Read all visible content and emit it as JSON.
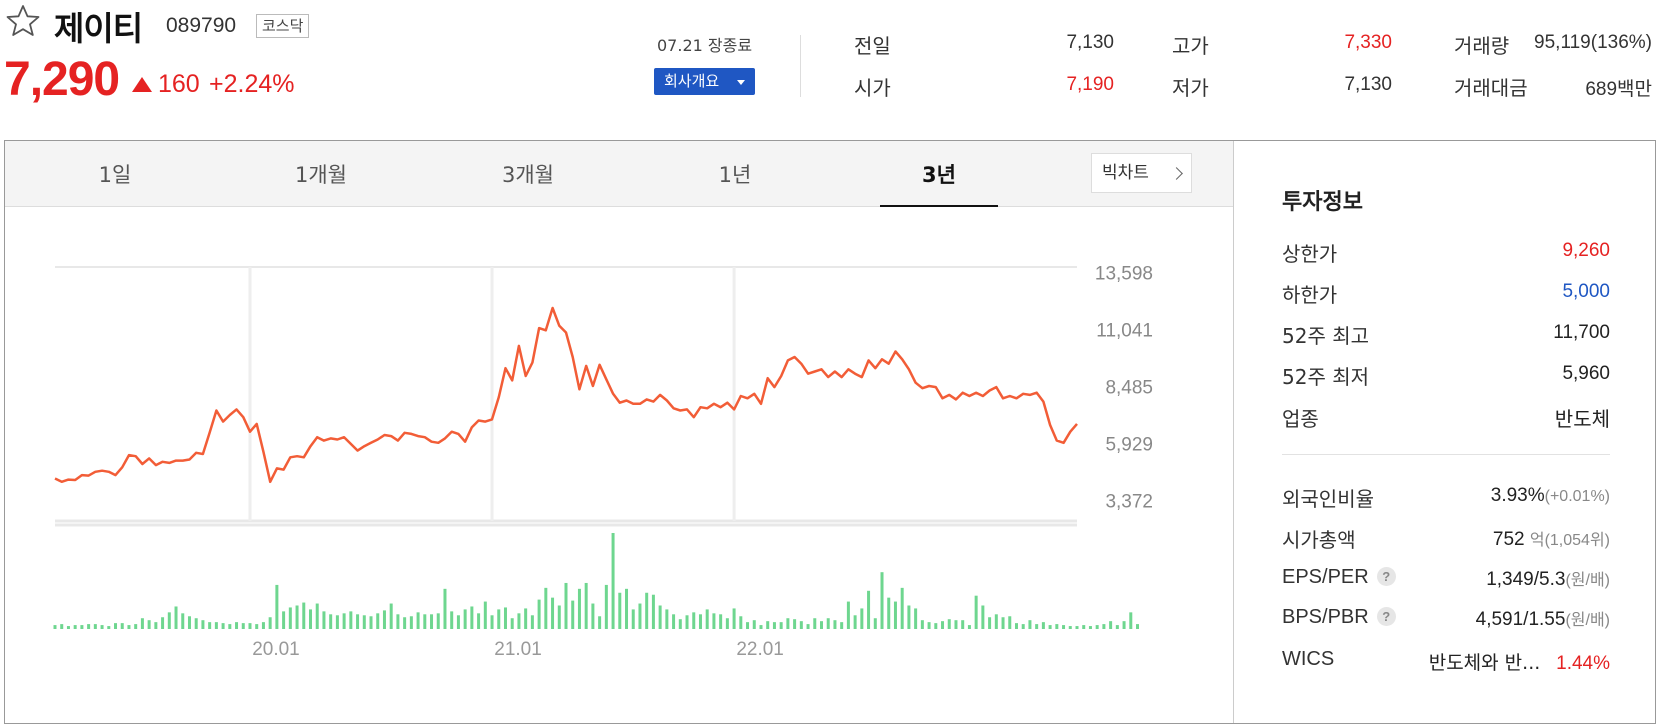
{
  "stock": {
    "name": "제이티",
    "code": "089790",
    "market": "코스닥",
    "price": "7,290",
    "change": "160",
    "change_pct": "+2.24%",
    "direction": "up"
  },
  "session": {
    "date_status": "07.21 장종료",
    "overview_button": "회사개요"
  },
  "stats": [
    {
      "label": "전일",
      "value": "7,130",
      "color": "#333333"
    },
    {
      "label": "고가",
      "value": "7,330",
      "color": "#e52222"
    },
    {
      "label": "거래량",
      "value": "95,119(136%)",
      "color": "#333333"
    },
    {
      "label": "시가",
      "value": "7,190",
      "color": "#e52222"
    },
    {
      "label": "저가",
      "value": "7,130",
      "color": "#333333"
    },
    {
      "label": "거래대금",
      "value": "689백만",
      "color": "#333333"
    }
  ],
  "tabs": [
    "1일",
    "1개월",
    "3개월",
    "1년",
    "3년"
  ],
  "active_tab": "3년",
  "big_chart_button": "빅차트",
  "chart_data": {
    "type": "line",
    "price_series_color": "#f25d37",
    "volume_series_color": "#6ed68f",
    "y_ticks": [
      "13,598",
      "11,041",
      "8,485",
      "5,929",
      "3,372"
    ],
    "y_tick_values": [
      13598,
      11041,
      8485,
      5929,
      3372
    ],
    "ylim": [
      2800,
      14200
    ],
    "x_ticks": [
      "20.01",
      "21.01",
      "22.01"
    ],
    "x_tick_positions": [
      29,
      65,
      101
    ],
    "grid": true,
    "price": [
      4350,
      4200,
      4300,
      4280,
      4500,
      4480,
      4650,
      4700,
      4650,
      4500,
      4850,
      5400,
      5350,
      5000,
      5250,
      4950,
      5100,
      5050,
      5150,
      5150,
      5200,
      5500,
      5450,
      6400,
      7400,
      6900,
      7200,
      7450,
      7100,
      6450,
      6800,
      5550,
      4200,
      4800,
      4750,
      5300,
      5350,
      5300,
      5800,
      6200,
      6050,
      6150,
      6100,
      6200,
      5900,
      5600,
      5800,
      5950,
      6100,
      6300,
      6250,
      6050,
      6400,
      6350,
      6250,
      6200,
      6000,
      5950,
      6150,
      6450,
      6350,
      6000,
      6650,
      6950,
      6900,
      7000,
      8000,
      9300,
      8750,
      10300,
      8950,
      9550,
      11100,
      11000,
      12000,
      11200,
      10900,
      9800,
      8350,
      9400,
      8500,
      9450,
      8800,
      8150,
      7750,
      7850,
      7700,
      7700,
      7900,
      7800,
      8100,
      7850,
      7500,
      7400,
      7450,
      7100,
      7550,
      7500,
      7700,
      7550,
      7750,
      7450,
      8050,
      7950,
      8150,
      7700,
      8850,
      8450,
      8950,
      9650,
      9800,
      9500,
      9050,
      9150,
      9250,
      8900,
      9150,
      8900,
      9250,
      9050,
      8900,
      9650,
      9300,
      9700,
      9500,
      10050,
      9700,
      9250,
      8650,
      8400,
      8500,
      8450,
      7950,
      8100,
      7900,
      8200,
      8050,
      8200,
      8050,
      8300,
      8450,
      7950,
      8050,
      7950,
      8150,
      8100,
      8200,
      7800,
      6750,
      6050,
      5950,
      6450,
      6800
    ],
    "volume": [
      4,
      5,
      3,
      4,
      4,
      5,
      5,
      4,
      3,
      6,
      6,
      4,
      5,
      11,
      9,
      7,
      12,
      17,
      23,
      16,
      13,
      11,
      9,
      7,
      7,
      6,
      5,
      7,
      6,
      6,
      5,
      7,
      12,
      45,
      18,
      22,
      24,
      27,
      20,
      26,
      18,
      15,
      14,
      16,
      18,
      15,
      14,
      13,
      16,
      19,
      26,
      15,
      12,
      13,
      17,
      15,
      15,
      16,
      41,
      18,
      14,
      20,
      23,
      16,
      28,
      14,
      20,
      22,
      11,
      16,
      21,
      14,
      30,
      42,
      32,
      24,
      47,
      29,
      41,
      47,
      26,
      13,
      45,
      98,
      37,
      41,
      20,
      26,
      37,
      35,
      24,
      20,
      15,
      10,
      14,
      17,
      15,
      20,
      16,
      15,
      11,
      21,
      13,
      7,
      9,
      4,
      8,
      7,
      7,
      11,
      10,
      8,
      5,
      11,
      8,
      11,
      9,
      7,
      28,
      14,
      21,
      39,
      11,
      58,
      32,
      28,
      42,
      24,
      21,
      9,
      7,
      6,
      8,
      10,
      9,
      9,
      4,
      34,
      24,
      12,
      15,
      12,
      13,
      6,
      5,
      9,
      5,
      7,
      4,
      5,
      4,
      3,
      3,
      4,
      3,
      4,
      5,
      8,
      4,
      8,
      17,
      5
    ]
  },
  "invest": {
    "title": "투자정보",
    "rows": [
      {
        "label": "상한가",
        "value": "9,260",
        "color": "#e52222"
      },
      {
        "label": "하한가",
        "value": "5,000",
        "color": "#1f57c3"
      },
      {
        "label": "52주 최고",
        "value": "11,700",
        "color": "#222222"
      },
      {
        "label": "52주 최저",
        "value": "5,960",
        "color": "#222222"
      },
      {
        "label": "업종",
        "value": "반도체",
        "color": "#222222"
      }
    ],
    "rows2": [
      {
        "label": "외국인비율",
        "value": "3.93%",
        "sub": "(+0.01%)"
      },
      {
        "label": "시가총액",
        "value": "752",
        "sub": "억(1,054위)"
      },
      {
        "label": "EPS/PER",
        "value": "1,349/5.3",
        "sub": "(원/배)",
        "help": "?"
      },
      {
        "label": "BPS/PBR",
        "value": "4,591/1.55",
        "sub": "(원/배)",
        "help": "?"
      },
      {
        "label": "WICS",
        "value": "반도체와 반...",
        "sub": "1.44%"
      }
    ]
  }
}
